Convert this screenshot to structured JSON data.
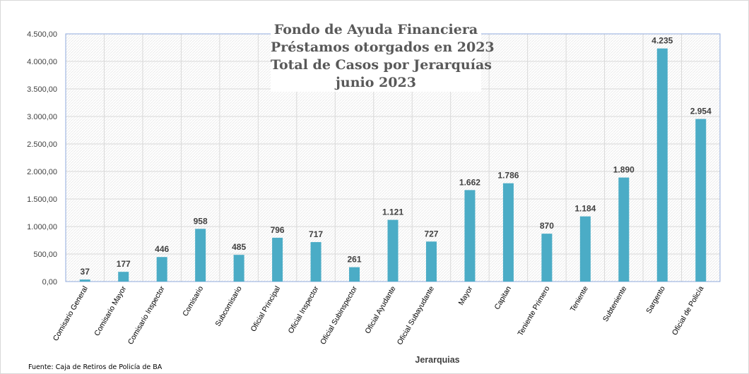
{
  "chart_data": {
    "type": "bar",
    "title_lines": [
      "Fondo de Ayuda Financiera",
      "Préstamos otorgados en 2023",
      "Total de Casos por Jerarquías",
      "junio 2023"
    ],
    "xlabel": "Jerarquias",
    "ylabel": "",
    "ylim": [
      0,
      4500
    ],
    "ytick_step": 500,
    "ytick_labels": [
      "0,00",
      "500,00",
      "1.000,00",
      "1.500,00",
      "2.000,00",
      "2.500,00",
      "3.000,00",
      "3.500,00",
      "4.000,00",
      "4.500,00"
    ],
    "categories": [
      "Comisario General",
      "Comisario Mayor",
      "Comisario Inspector",
      "Comisario",
      "Subcomisario",
      "Oficial Principal",
      "Oficial Inspector",
      "Oficial Subinspector",
      "Oficial Ayudante",
      "Oficial Subayudante",
      "Mayor",
      "Capitan",
      "Teniente Primero",
      "Teniente",
      "Subteniente",
      "Sargento",
      "Oficial de Policía"
    ],
    "values": [
      37,
      177,
      446,
      958,
      485,
      796,
      717,
      261,
      1121,
      727,
      1662,
      1786,
      870,
      1184,
      1890,
      4235,
      2954
    ],
    "value_labels": [
      "37",
      "177",
      "446",
      "958",
      "485",
      "796",
      "717",
      "261",
      "1.121",
      "727",
      "1.662",
      "1.786",
      "870",
      "1.184",
      "1.890",
      "4.235",
      "2.954"
    ],
    "grid": true,
    "legend": "none",
    "bar_color": "#4bacc6"
  },
  "source_note": "Fuente: Caja de Retiros de Policía de BA"
}
